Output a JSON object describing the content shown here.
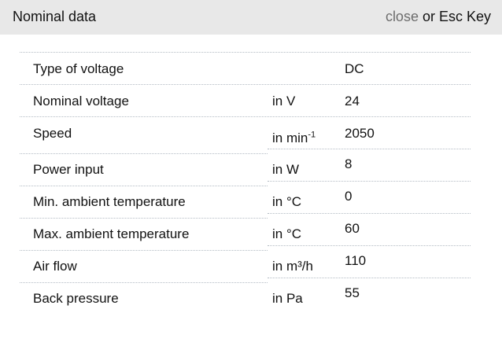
{
  "header": {
    "title": "Nominal data",
    "close_label": "close",
    "close_suffix": " or Esc Key"
  },
  "rows": [
    {
      "label": "Type of voltage",
      "unit": "",
      "value": "DC"
    },
    {
      "label": "Nominal voltage",
      "unit": "in V",
      "value": "24"
    },
    {
      "label": "Speed",
      "unit": "in min",
      "unit_sup": "-1",
      "value": "2050"
    },
    {
      "label": "Power input",
      "unit": "in W",
      "value": "8"
    },
    {
      "label": "Min. ambient temperature",
      "unit": "in °C",
      "value": "0"
    },
    {
      "label": "Max. ambient temperature",
      "unit": "in °C",
      "value": "60"
    },
    {
      "label": "Air flow",
      "unit": "in m³/h",
      "value": "110"
    },
    {
      "label": "Back pressure",
      "unit": "in Pa",
      "value": "55"
    }
  ]
}
